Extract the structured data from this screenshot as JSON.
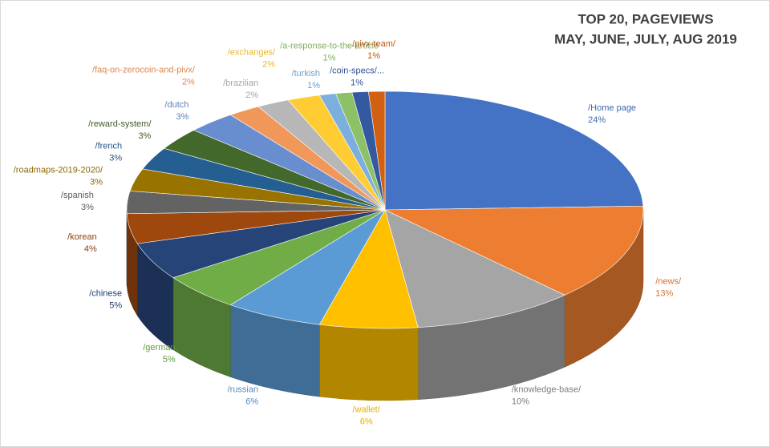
{
  "chart_data": {
    "type": "pie",
    "title": "TOP  20, PAGEVIEWS",
    "subtitle": "MAY, JUNE, JULY, AUG 2019",
    "categories": [
      "/Home page",
      "/news/",
      "/knowledge-base/",
      "/wallet/",
      "/russian",
      "/german",
      "/chinese",
      "/korean",
      "/spanish",
      "/roadmaps-2019-2020/",
      "/french",
      "/reward-system/",
      "/dutch",
      "/faq-on-zerocoin-and-pivx/",
      "/brazilian",
      "/exchanges/",
      "/turkish",
      "/a-response-to-the-article",
      "/coin-specs/...",
      "/pivx-team/"
    ],
    "values": [
      24,
      13,
      10,
      6,
      6,
      5,
      5,
      4,
      3,
      3,
      3,
      3,
      3,
      2,
      2,
      2,
      1,
      1,
      1,
      1
    ],
    "value_labels": [
      "24%",
      "13%",
      "10%",
      "6%",
      "6%",
      "5%",
      "5%",
      "4%",
      "3%",
      "3%",
      "3%",
      "3%",
      "3%",
      "2%",
      "2%",
      "2%",
      "1%",
      "1%",
      "1%",
      "1%"
    ],
    "colors": [
      "#4472c4",
      "#ed7d31",
      "#a5a5a5",
      "#ffc000",
      "#5b9bd5",
      "#70ad47",
      "#264478",
      "#9e480e",
      "#636363",
      "#997300",
      "#255e91",
      "#43682b",
      "#698ed0",
      "#f1975a",
      "#b7b7b7",
      "#ffcd33",
      "#7cafdd",
      "#8cc168",
      "#335aa1",
      "#d26012"
    ]
  }
}
